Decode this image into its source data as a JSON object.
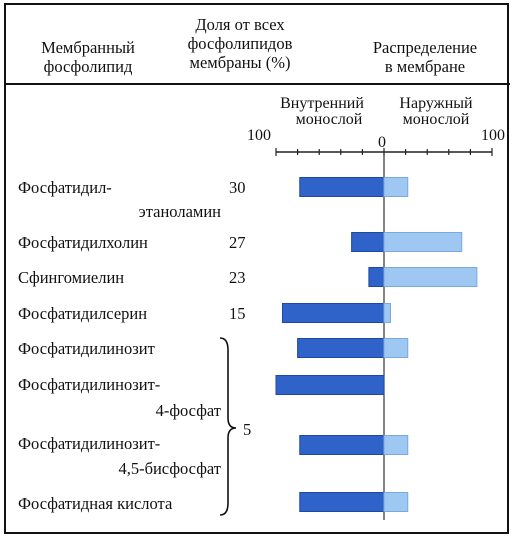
{
  "header": {
    "col1": [
      "Мембранный",
      "фосфолипид"
    ],
    "col2": [
      "Доля от всех",
      "фосфолипидов",
      "мембраны (%)"
    ],
    "col3": [
      "Распределение",
      "в мембране"
    ]
  },
  "chart_data": {
    "type": "bar",
    "title": "",
    "axis_labels": {
      "inner": [
        "Внутренний",
        "монослой"
      ],
      "outer": [
        "Наружный",
        "монослой"
      ]
    },
    "tick_labels": {
      "left": "100",
      "zero": "0",
      "right": "100"
    },
    "xlim": [
      -100,
      100
    ],
    "colors": {
      "inner": "#2f63c9",
      "outer": "#9ec7f2",
      "inner_edge": "#1f48a0",
      "outer_edge": "#7aa9de"
    },
    "rows": [
      {
        "label": [
          "Фосфатидил-",
          "этаноламин"
        ],
        "share": "30",
        "inner": 78,
        "outer": 22
      },
      {
        "label": [
          "Фосфатидилхолин"
        ],
        "share": "27",
        "inner": 30,
        "outer": 72
      },
      {
        "label": [
          "Сфингомиелин"
        ],
        "share": "23",
        "inner": 14,
        "outer": 86
      },
      {
        "label": [
          "Фосфатидилсерин"
        ],
        "share": "15",
        "inner": 94,
        "outer": 6
      },
      {
        "label": [
          "Фосфатидилинозит"
        ],
        "share": "",
        "inner": 80,
        "outer": 22
      },
      {
        "label": [
          "Фосфатидилинозит-",
          "4-фосфат"
        ],
        "share": "",
        "inner": 100,
        "outer": 0
      },
      {
        "label": [
          "Фосфатидилинозит-",
          "4,5-бисфосфат"
        ],
        "share": "",
        "inner": 78,
        "outer": 22
      },
      {
        "label": [
          "Фосфатидная кислота"
        ],
        "share": "",
        "inner": 78,
        "outer": 22
      }
    ],
    "group_share": "5"
  }
}
